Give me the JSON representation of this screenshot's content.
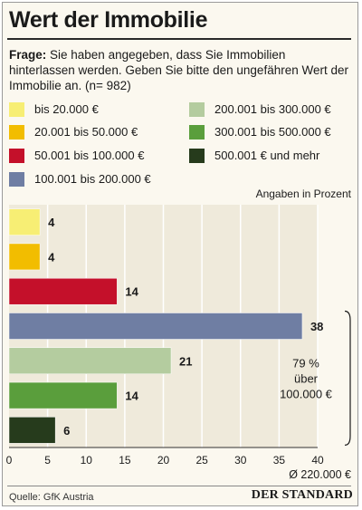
{
  "header": {
    "title": "Wert der Immobilie"
  },
  "question": {
    "prefix": "Frage:",
    "text": " Sie haben angegeben, dass Sie Immobilien hinterlassen werden. Geben Sie bitte den ungefähren Wert der Immobilie an. (n= 982)"
  },
  "legend": [
    {
      "label": "bis 20.000 €",
      "color": "#f7ee74"
    },
    {
      "label": "20.001 bis 50.000 €",
      "color": "#f2bd00"
    },
    {
      "label": "50.001 bis 100.000 €",
      "color": "#c4102a"
    },
    {
      "label": "100.001 bis 200.000 €",
      "color": "#6f7ea3"
    },
    {
      "label": "200.001 bis 300.000 €",
      "color": "#b4cc9f"
    },
    {
      "label": "300.001 bis 500.000 €",
      "color": "#5a9e3c"
    },
    {
      "label": "500.001 € und mehr",
      "color": "#263b1c"
    }
  ],
  "chart_data": {
    "type": "bar",
    "orientation": "horizontal",
    "categories": [
      "bis 20.000 €",
      "20.001 bis 50.000 €",
      "50.001 bis 100.000 €",
      "100.001 bis 200.000 €",
      "200.001 bis 300.000 €",
      "300.001 bis 500.000 €",
      "500.001 € und mehr"
    ],
    "values": [
      4,
      4,
      14,
      38,
      21,
      14,
      6
    ],
    "colors": [
      "#f7ee74",
      "#f2bd00",
      "#c4102a",
      "#6f7ea3",
      "#b4cc9f",
      "#5a9e3c",
      "#263b1c"
    ],
    "unit_label": "Angaben in Prozent",
    "xlim": [
      0,
      40
    ],
    "xticks": [
      0,
      5,
      10,
      15,
      20,
      25,
      30,
      35,
      40
    ],
    "grid": true,
    "bracket": {
      "label_value": "79 %",
      "label_text": "über",
      "label_amount": "100.000 €",
      "spans": [
        "100.001 bis 200.000 €",
        "300.001 bis 500.000 €"
      ]
    },
    "average_note": "Ø 220.000 €"
  },
  "footer": {
    "source": "Quelle: GfK Austria",
    "brand": "DER STANDARD"
  }
}
